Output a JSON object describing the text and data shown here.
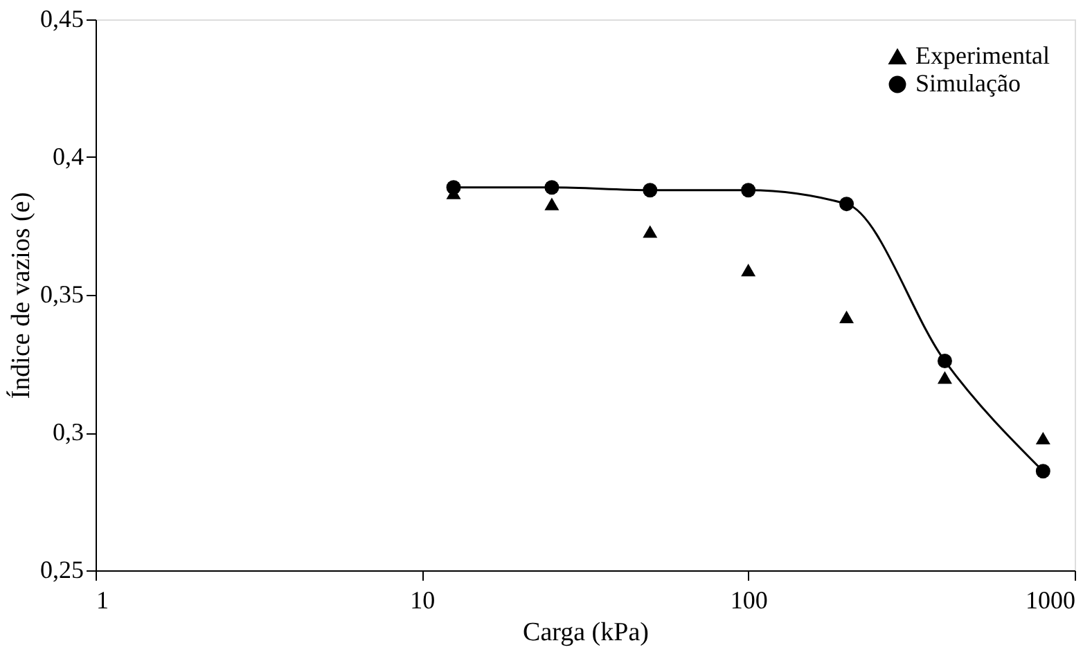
{
  "chart_data": {
    "type": "line",
    "xlabel": "Carga (kPa)",
    "ylabel": "Índice de vazios (e)",
    "log": "x",
    "xlim": [
      1,
      1000
    ],
    "xticks": [
      1,
      10,
      100,
      1000
    ],
    "ylim": [
      0.25,
      0.45
    ],
    "yticks": [
      {
        "value": 0.25,
        "label": "0,25"
      },
      {
        "value": 0.3,
        "label": "0,3"
      },
      {
        "value": 0.35,
        "label": "0,35"
      },
      {
        "value": 0.4,
        "label": "0,4"
      },
      {
        "value": 0.45,
        "label": "0,45"
      }
    ],
    "grid": false,
    "legend": "top right",
    "line_style": "solid",
    "x": [
      12.5,
      25,
      50,
      100,
      200,
      400,
      800
    ],
    "series": [
      {
        "name": "Experimental",
        "type": "scatter",
        "marker": "triangle",
        "color": "#000000",
        "values": [
          0.387,
          0.383,
          0.373,
          0.359,
          0.342,
          0.32,
          0.298
        ]
      },
      {
        "name": "Simulação",
        "marker": "circle",
        "color": "#000000",
        "values": [
          0.389,
          0.389,
          0.388,
          0.388,
          0.383,
          0.326,
          0.286
        ]
      }
    ]
  }
}
